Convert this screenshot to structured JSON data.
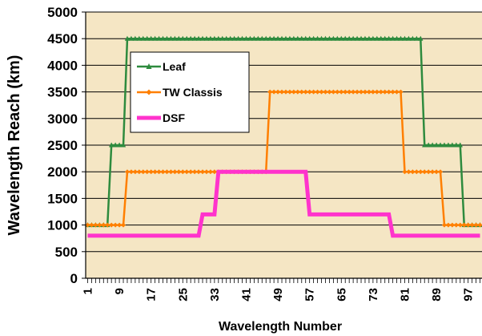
{
  "chart_data": {
    "type": "line",
    "title": "",
    "xlabel": "Wavelength Number",
    "ylabel": "Wavelength Reach (km)",
    "ylim": [
      0,
      5000
    ],
    "xlim": [
      1,
      100
    ],
    "yticks": [
      0,
      500,
      1000,
      1500,
      2000,
      2500,
      3000,
      3500,
      4000,
      4500,
      5000
    ],
    "xtick_labels": [
      1,
      9,
      17,
      25,
      33,
      41,
      49,
      57,
      65,
      73,
      81,
      89,
      97
    ],
    "grid": "horizontal",
    "legend_position": "upper-left",
    "plot_background": "#f5e6c4",
    "series": [
      {
        "name": "Leaf",
        "color": "#2e8b3e",
        "marker": "triangle",
        "steps": [
          {
            "from": 1,
            "to": 6,
            "value": 1000
          },
          {
            "from": 7,
            "to": 10,
            "value": 2500
          },
          {
            "from": 11,
            "to": 85,
            "value": 4500
          },
          {
            "from": 86,
            "to": 95,
            "value": 2500
          },
          {
            "from": 96,
            "to": 100,
            "value": 1000
          }
        ]
      },
      {
        "name": "TW Classis",
        "color": "#ff7f00",
        "marker": "diamond",
        "steps": [
          {
            "from": 1,
            "to": 10,
            "value": 1000
          },
          {
            "from": 11,
            "to": 46,
            "value": 2000
          },
          {
            "from": 47,
            "to": 80,
            "value": 3500
          },
          {
            "from": 81,
            "to": 90,
            "value": 2000
          },
          {
            "from": 91,
            "to": 100,
            "value": 1000
          }
        ]
      },
      {
        "name": "DSF",
        "color": "#ff33cc",
        "marker": "none",
        "steps": [
          {
            "from": 1,
            "to": 29,
            "value": 800
          },
          {
            "from": 30,
            "to": 33,
            "value": 1200
          },
          {
            "from": 34,
            "to": 56,
            "value": 2000
          },
          {
            "from": 57,
            "to": 77,
            "value": 1200
          },
          {
            "from": 78,
            "to": 100,
            "value": 800
          }
        ]
      }
    ]
  }
}
